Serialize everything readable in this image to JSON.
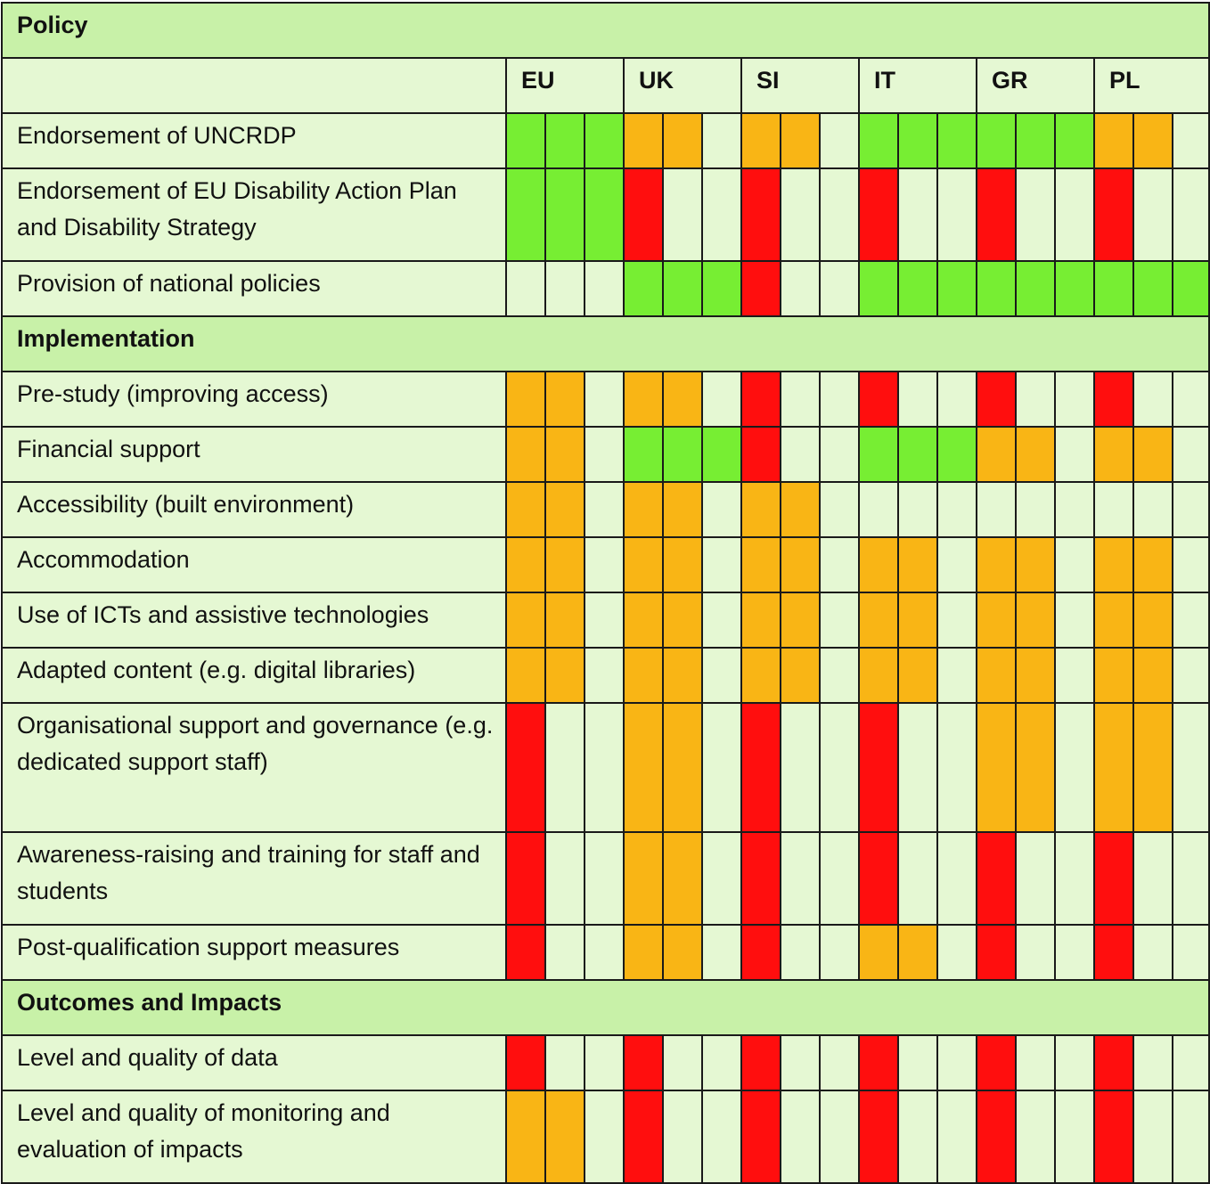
{
  "countries": [
    "EU",
    "UK",
    "SI",
    "IT",
    "GR",
    "PL"
  ],
  "legend_colors": {
    "g": "#77ee33",
    "o": "#f9b515",
    "r": "#ff0e0e",
    "empty": "#e5f8d3",
    "section": "#c8f1a8"
  },
  "sections": [
    {
      "title": "Policy",
      "rows": [
        {
          "label": "Endorsement of UNCRDP",
          "height": "h62",
          "cells": [
            "g",
            "g",
            "g",
            "o",
            "o",
            "-",
            "o",
            "o",
            "-",
            "g",
            "g",
            "g",
            "g",
            "g",
            "g",
            "o",
            "o",
            "-"
          ]
        },
        {
          "label": "Endorsement of EU Disability Action Plan and Disability Strategy",
          "height": "h104",
          "cells": [
            "g",
            "g",
            "g",
            "r",
            "-",
            "-",
            "r",
            "-",
            "-",
            "r",
            "-",
            "-",
            "r",
            "-",
            "-",
            "r",
            "-",
            "-"
          ]
        },
        {
          "label": "Provision of national policies",
          "height": "h62",
          "cells": [
            "-",
            "-",
            "-",
            "g",
            "g",
            "g",
            "r",
            "-",
            "-",
            "g",
            "g",
            "g",
            "g",
            "g",
            "g",
            "g",
            "g",
            "g"
          ]
        }
      ]
    },
    {
      "title": "Implementation",
      "rows": [
        {
          "label": "Pre-study (improving access)",
          "height": "h62",
          "cells": [
            "o",
            "o",
            "-",
            "o",
            "o",
            "-",
            "r",
            "-",
            "-",
            "r",
            "-",
            "-",
            "r",
            "-",
            "-",
            "r",
            "-",
            "-"
          ]
        },
        {
          "label": "Financial support",
          "height": "h62",
          "cells": [
            "o",
            "o",
            "-",
            "g",
            "g",
            "g",
            "r",
            "-",
            "-",
            "g",
            "g",
            "g",
            "o",
            "o",
            "-",
            "o",
            "o",
            "-"
          ]
        },
        {
          "label": "Accessibility (built environment)",
          "height": "h62",
          "cells": [
            "o",
            "o",
            "-",
            "o",
            "o",
            "-",
            "o",
            "o",
            "-",
            "-",
            "-",
            "-",
            "-",
            "-",
            "-",
            "-",
            "-",
            "-"
          ]
        },
        {
          "label": "Accommodation",
          "height": "h62",
          "cells": [
            "o",
            "o",
            "-",
            "o",
            "o",
            "-",
            "o",
            "o",
            "-",
            "o",
            "o",
            "-",
            "o",
            "o",
            "-",
            "o",
            "o",
            "-"
          ]
        },
        {
          "label": "Use of ICTs and assistive technologies",
          "height": "h62",
          "cells": [
            "o",
            "o",
            "-",
            "o",
            "o",
            "-",
            "o",
            "o",
            "-",
            "o",
            "o",
            "-",
            "o",
            "o",
            "-",
            "o",
            "o",
            "-"
          ]
        },
        {
          "label": "Adapted content (e.g. digital libraries)",
          "height": "h62",
          "cells": [
            "o",
            "o",
            "-",
            "o",
            "o",
            "-",
            "o",
            "o",
            "-",
            "o",
            "o",
            "-",
            "o",
            "o",
            "-",
            "o",
            "o",
            "-"
          ]
        },
        {
          "label": "Organisational support and governance (e.g. dedicated support staff)",
          "height": "h145",
          "cells": [
            "r",
            "-",
            "-",
            "o",
            "o",
            "-",
            "r",
            "-",
            "-",
            "r",
            "-",
            "-",
            "o",
            "o",
            "-",
            "o",
            "o",
            "-"
          ]
        },
        {
          "label": "Awareness-raising and training for staff and students",
          "height": "h104",
          "cells": [
            "r",
            "-",
            "-",
            "o",
            "o",
            "-",
            "r",
            "-",
            "-",
            "r",
            "-",
            "-",
            "r",
            "-",
            "-",
            "r",
            "-",
            "-"
          ]
        },
        {
          "label": "Post-qualification support measures",
          "height": "h62",
          "cells": [
            "r",
            "-",
            "-",
            "o",
            "o",
            "-",
            "r",
            "-",
            "-",
            "o",
            "o",
            "-",
            "r",
            "-",
            "-",
            "r",
            "-",
            "-"
          ]
        }
      ]
    },
    {
      "title": "Outcomes and Impacts",
      "rows": [
        {
          "label": "Level and quality of data",
          "height": "h62",
          "cells": [
            "r",
            "-",
            "-",
            "r",
            "-",
            "-",
            "r",
            "-",
            "-",
            "r",
            "-",
            "-",
            "r",
            "-",
            "-",
            "r",
            "-",
            "-"
          ]
        },
        {
          "label": "Level and quality of monitoring and evaluation of impacts",
          "height": "h104",
          "cells": [
            "o",
            "o",
            "-",
            "r",
            "-",
            "-",
            "r",
            "-",
            "-",
            "r",
            "-",
            "-",
            "r",
            "-",
            "-",
            "r",
            "-",
            "-"
          ]
        }
      ]
    }
  ]
}
